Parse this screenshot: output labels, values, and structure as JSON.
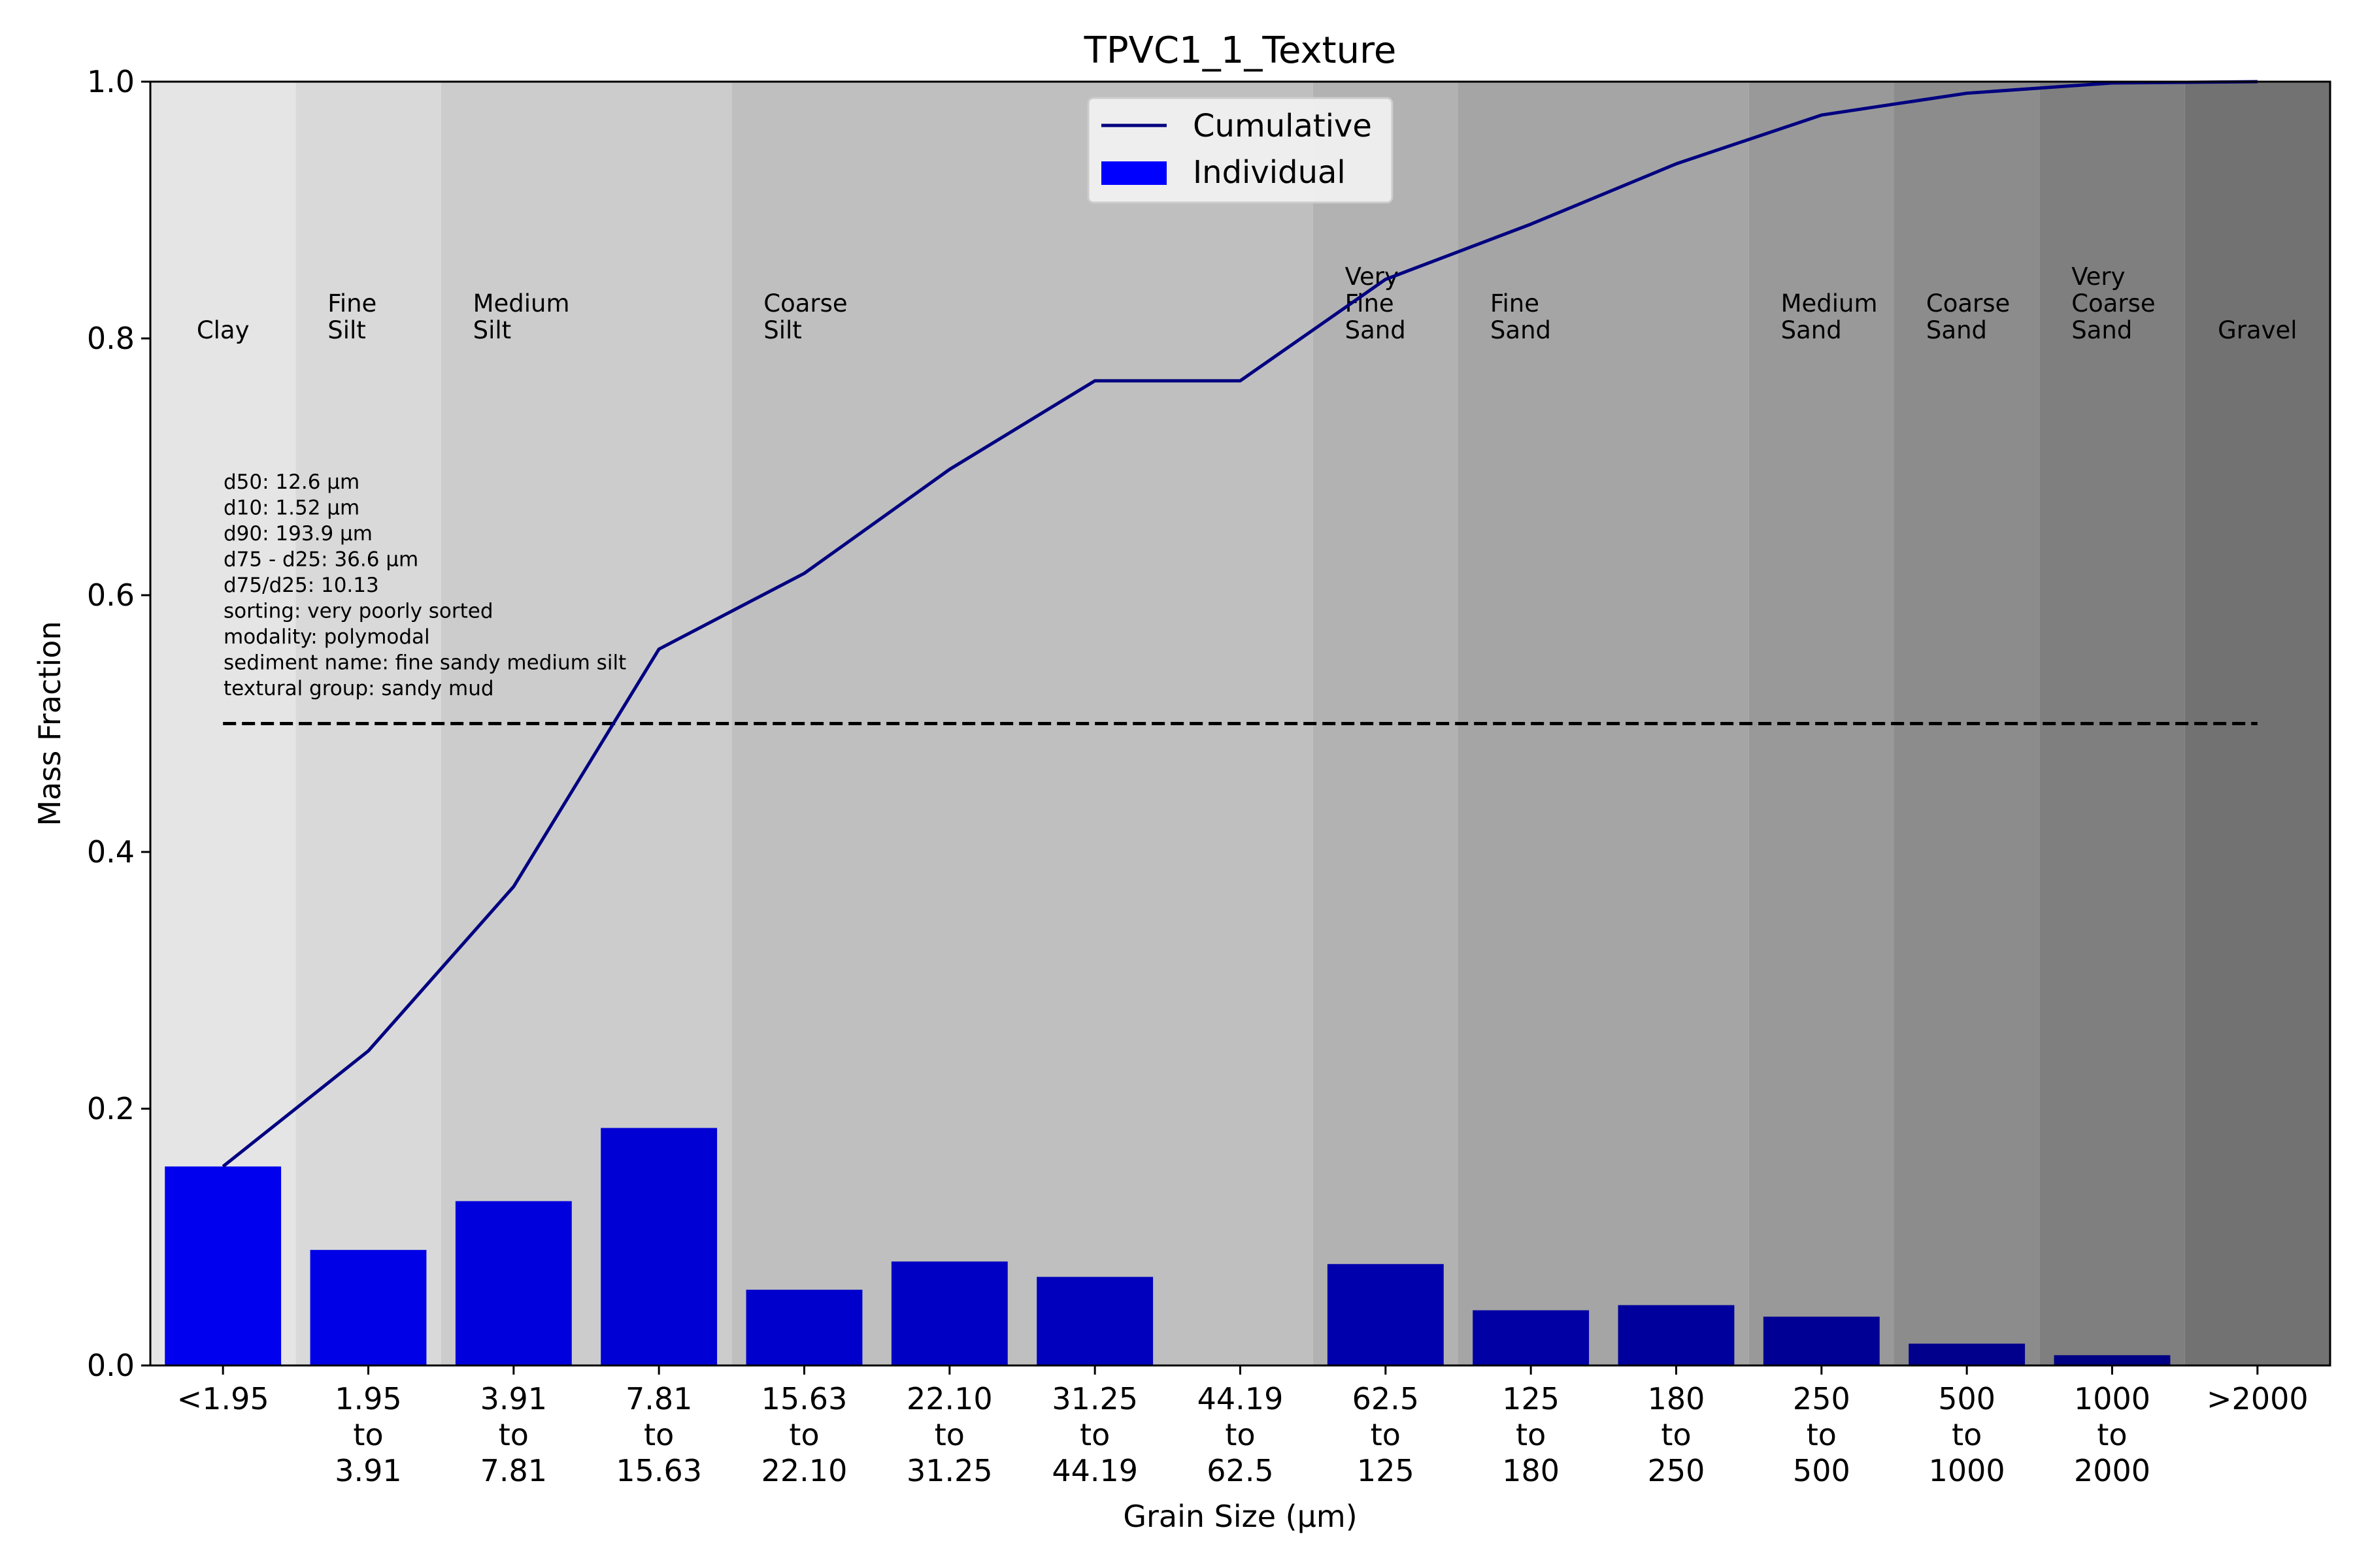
{
  "chart_data": {
    "type": "bar",
    "title": "TPVC1_1_Texture",
    "xlabel": "Grain Size (μm)",
    "ylabel": "Mass Fraction",
    "ylim": [
      0,
      1.0
    ],
    "y_ticks": [
      "0.0",
      "0.2",
      "0.4",
      "0.6",
      "0.8",
      "1.0"
    ],
    "categories": [
      [
        "<1.95"
      ],
      [
        "1.95",
        "to",
        "3.91"
      ],
      [
        "3.91",
        "to",
        "7.81"
      ],
      [
        "7.81",
        "to",
        "15.63"
      ],
      [
        "15.63",
        "to",
        "22.10"
      ],
      [
        "22.10",
        "to",
        "31.25"
      ],
      [
        "31.25",
        "to",
        "44.19"
      ],
      [
        "44.19",
        "to",
        "62.5"
      ],
      [
        "62.5",
        "to",
        "125"
      ],
      [
        "125",
        "to",
        "180"
      ],
      [
        "180",
        "to",
        "250"
      ],
      [
        "250",
        "to",
        "500"
      ],
      [
        "500",
        "to",
        "1000"
      ],
      [
        "1000",
        "to",
        "2000"
      ],
      [
        ">2000"
      ]
    ],
    "series": [
      {
        "name": "Individual",
        "type": "bar",
        "values": [
          0.155,
          0.09,
          0.128,
          0.185,
          0.059,
          0.081,
          0.069,
          0.0,
          0.079,
          0.043,
          0.047,
          0.038,
          0.017,
          0.008,
          0.0
        ],
        "colors": [
          "#0000ee",
          "#0000e6",
          "#0000dd",
          "#0000d5",
          "#0000cd",
          "#0000c5",
          "#0000bd",
          "#0000b5",
          "#0000ac",
          "#0000a4",
          "#00009c",
          "#000094",
          "#00008c",
          "#000084",
          "#00007c"
        ]
      },
      {
        "name": "Cumulative",
        "type": "line",
        "color": "#000080",
        "values": [
          0.155,
          0.245,
          0.373,
          0.558,
          0.617,
          0.698,
          0.767,
          0.767,
          0.846,
          0.889,
          0.936,
          0.974,
          0.991,
          0.999,
          1.0
        ]
      }
    ],
    "reference_line": {
      "y": 0.5,
      "style": "dashed",
      "color": "#000000"
    },
    "legend": {
      "placement": "upper-center",
      "entries": [
        "Cumulative",
        "Individual"
      ]
    },
    "grain_classes": [
      {
        "label": [
          "Clay"
        ],
        "span": [
          0,
          0
        ],
        "shade": "#e5e5e5"
      },
      {
        "label": [
          "Fine",
          "Silt"
        ],
        "span": [
          1,
          1
        ],
        "shade": "#d9d9d9"
      },
      {
        "label": [
          "Medium",
          "Silt"
        ],
        "span": [
          2,
          3
        ],
        "shade": "#cccccc"
      },
      {
        "label": [
          "Coarse",
          "Silt"
        ],
        "span": [
          4,
          7
        ],
        "shade": "#bfbfbf"
      },
      {
        "label": [
          "Very",
          "Fine",
          "Sand"
        ],
        "span": [
          8,
          8
        ],
        "shade": "#b2b2b2"
      },
      {
        "label": [
          "Fine",
          "Sand"
        ],
        "span": [
          9,
          10
        ],
        "shade": "#a5a5a5"
      },
      {
        "label": [
          "Medium",
          "Sand"
        ],
        "span": [
          11,
          11
        ],
        "shade": "#999999"
      },
      {
        "label": [
          "Coarse",
          "Sand"
        ],
        "span": [
          12,
          12
        ],
        "shade": "#8c8c8c"
      },
      {
        "label": [
          "Very",
          "Coarse",
          "Sand"
        ],
        "span": [
          13,
          13
        ],
        "shade": "#7f7f7f"
      },
      {
        "label": [
          "Gravel"
        ],
        "span": [
          14,
          14
        ],
        "shade": "#727272"
      }
    ],
    "stats": [
      "d50: 12.6 μm",
      "d10: 1.52 μm",
      "d90: 193.9 μm",
      "d75 - d25: 36.6 μm",
      "d75/d25: 10.13",
      "sorting: very poorly sorted",
      "modality: polymodal",
      "sediment name: fine sandy medium silt",
      "textural group: sandy mud"
    ]
  }
}
